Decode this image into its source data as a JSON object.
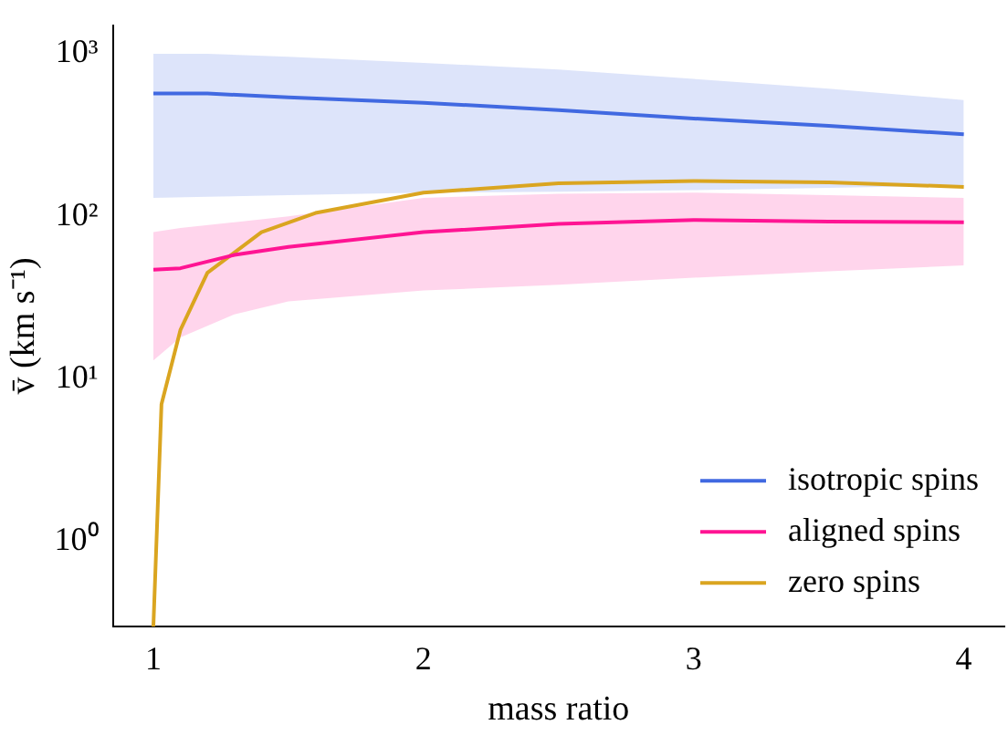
{
  "chart_data": {
    "type": "line",
    "xlabel": "mass ratio",
    "ylabel": "v̄ (km s⁻¹)",
    "log": "y",
    "xlim": [
      0.85,
      4.15
    ],
    "xticks": [
      1,
      2,
      3,
      4
    ],
    "ylim": [
      0.3,
      1500
    ],
    "yticks": [
      {
        "value": 1,
        "label": "10⁰"
      },
      {
        "value": 10,
        "label": "10¹"
      },
      {
        "value": 100,
        "label": "10²"
      },
      {
        "value": 1000,
        "label": "10³"
      }
    ],
    "grid": false,
    "legend": "bottom right",
    "marker": "none",
    "line_style": "solid",
    "series": [
      {
        "name": "isotropic spins",
        "color": "#4169e1",
        "x": [
          1,
          1.2,
          1.5,
          2,
          2.5,
          3,
          3.5,
          4
        ],
        "values": [
          570,
          570,
          540,
          500,
          450,
          400,
          360,
          320
        ],
        "lower": [
          130,
          132,
          135,
          140,
          142,
          145,
          150,
          155
        ],
        "upper": [
          1000,
          1000,
          960,
          880,
          800,
          700,
          610,
          520
        ]
      },
      {
        "name": "aligned spins",
        "color": "#ff1493",
        "x": [
          1,
          1.1,
          1.3,
          1.5,
          2,
          2.5,
          3,
          3.5,
          4
        ],
        "values": [
          47,
          48,
          58,
          65,
          80,
          90,
          95,
          93,
          92
        ],
        "lower": [
          13,
          18,
          25,
          30,
          35,
          38,
          42,
          46,
          50
        ],
        "upper": [
          80,
          85,
          92,
          100,
          130,
          138,
          140,
          135,
          130
        ]
      },
      {
        "name": "zero spins",
        "color": "#daa520",
        "x": [
          1,
          1.03,
          1.1,
          1.2,
          1.4,
          1.6,
          2,
          2.5,
          3,
          3.5,
          4
        ],
        "values": [
          0.3,
          7,
          20,
          45,
          80,
          105,
          140,
          160,
          165,
          162,
          152
        ]
      }
    ]
  }
}
